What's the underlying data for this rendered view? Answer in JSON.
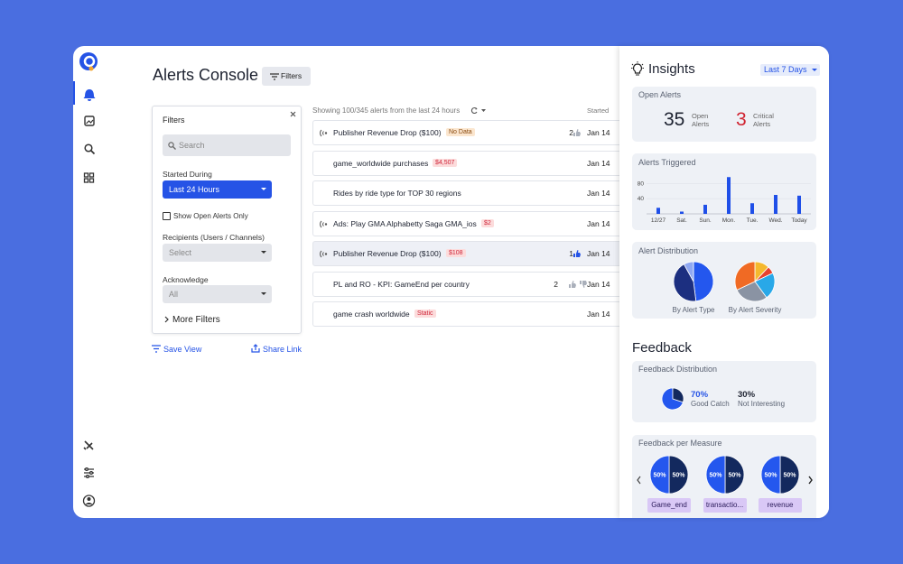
{
  "header": {
    "title": "Alerts Console",
    "filters_button": "Filters"
  },
  "filters": {
    "title": "Filters",
    "search_placeholder": "Search",
    "started_during": {
      "label": "Started During",
      "value": "Last 24 Hours"
    },
    "open_only": "Show Open Alerts Only",
    "recipients": {
      "label": "Recipients (Users / Channels)",
      "value": "Select"
    },
    "acknowledge": {
      "label": "Acknowledge",
      "value": "All"
    },
    "more": "More Filters"
  },
  "actions": {
    "save": "Save View",
    "share": "Share Link"
  },
  "alerts": {
    "summary": "Showing 100/345 alerts from the last 24 hours",
    "column": "Started",
    "rows": [
      {
        "name": "Publisher Revenue Drop ($100)",
        "tag": "No Data",
        "tag_kind": "warning",
        "signal": true,
        "likes": 2,
        "date": "Jan 14"
      },
      {
        "name": "game_worldwide purchases",
        "tag": "$4,507",
        "date": "Jan 14"
      },
      {
        "name": "Rides by ride type for TOP 30 regions",
        "date": "Jan 14"
      },
      {
        "name": "Ads: Play GMA Alphabetty Saga GMA_ios",
        "tag": "$2",
        "signal": true,
        "date": "Jan 14"
      },
      {
        "name": "Publisher Revenue Drop ($100)",
        "tag": "$108",
        "signal": true,
        "likes": 1,
        "selected": true,
        "date": "Jan 14"
      },
      {
        "name": "PL and RO - KPI: GameEnd per country",
        "likes": 2,
        "thumbs_down": true,
        "date": "Jan 14"
      },
      {
        "name": "game crash worldwide",
        "tag": "Static",
        "date": "Jan 14"
      }
    ]
  },
  "insights": {
    "title": "Insights",
    "range": "Last 7 Days",
    "open_alerts": {
      "title": "Open Alerts",
      "open": {
        "count": 35,
        "label": "Open Alerts"
      },
      "critical": {
        "count": 3,
        "label": "Critical Alerts"
      }
    },
    "alerts_triggered": {
      "title": "Alerts Triggered",
      "type": "bar",
      "categories": [
        "12/27",
        "Sat.",
        "Sun.",
        "Mon.",
        "Tue.",
        "Wed.",
        "Today"
      ],
      "values": [
        16,
        6,
        24,
        97,
        28,
        50,
        48
      ],
      "color": "#1f4fe8",
      "ylim": [
        0,
        100
      ],
      "yticks": [
        40,
        80
      ],
      "grid": true
    },
    "alert_distribution": {
      "title": "Alert Distribution",
      "charts": [
        {
          "type": "pie",
          "label": "By Alert Type",
          "values": [
            48,
            44,
            8
          ],
          "colors": [
            "#2457ee",
            "#1c2f80",
            "#8fa8f2"
          ]
        },
        {
          "type": "pie",
          "label": "By Alert Severity",
          "values": [
            12,
            6,
            22,
            28,
            32
          ],
          "colors": [
            "#f5b82e",
            "#e8412f",
            "#29a8e8",
            "#8a93a3",
            "#f06a24"
          ]
        }
      ]
    }
  },
  "feedback": {
    "title": "Feedback",
    "distribution": {
      "title": "Feedback Distribution",
      "type": "pie",
      "values": [
        70,
        30
      ],
      "value_labels": [
        "70%",
        "30%"
      ],
      "labels": [
        "Good Catch",
        "Not Interesting"
      ],
      "colors": [
        "#2457ee",
        "#13295e"
      ]
    },
    "per_measure": {
      "title": "Feedback per Measure",
      "colors": [
        "#13295e",
        "#2457ee"
      ],
      "items": [
        {
          "name": "Game_end",
          "type": "pie",
          "values": [
            50,
            50
          ],
          "value_labels": [
            "50%",
            "50%"
          ]
        },
        {
          "name": "transactio...",
          "type": "pie",
          "values": [
            50,
            50
          ],
          "value_labels": [
            "50%",
            "50%"
          ]
        },
        {
          "name": "revenue",
          "type": "pie",
          "values": [
            50,
            50
          ],
          "value_labels": [
            "50%",
            "50%"
          ]
        }
      ]
    }
  }
}
